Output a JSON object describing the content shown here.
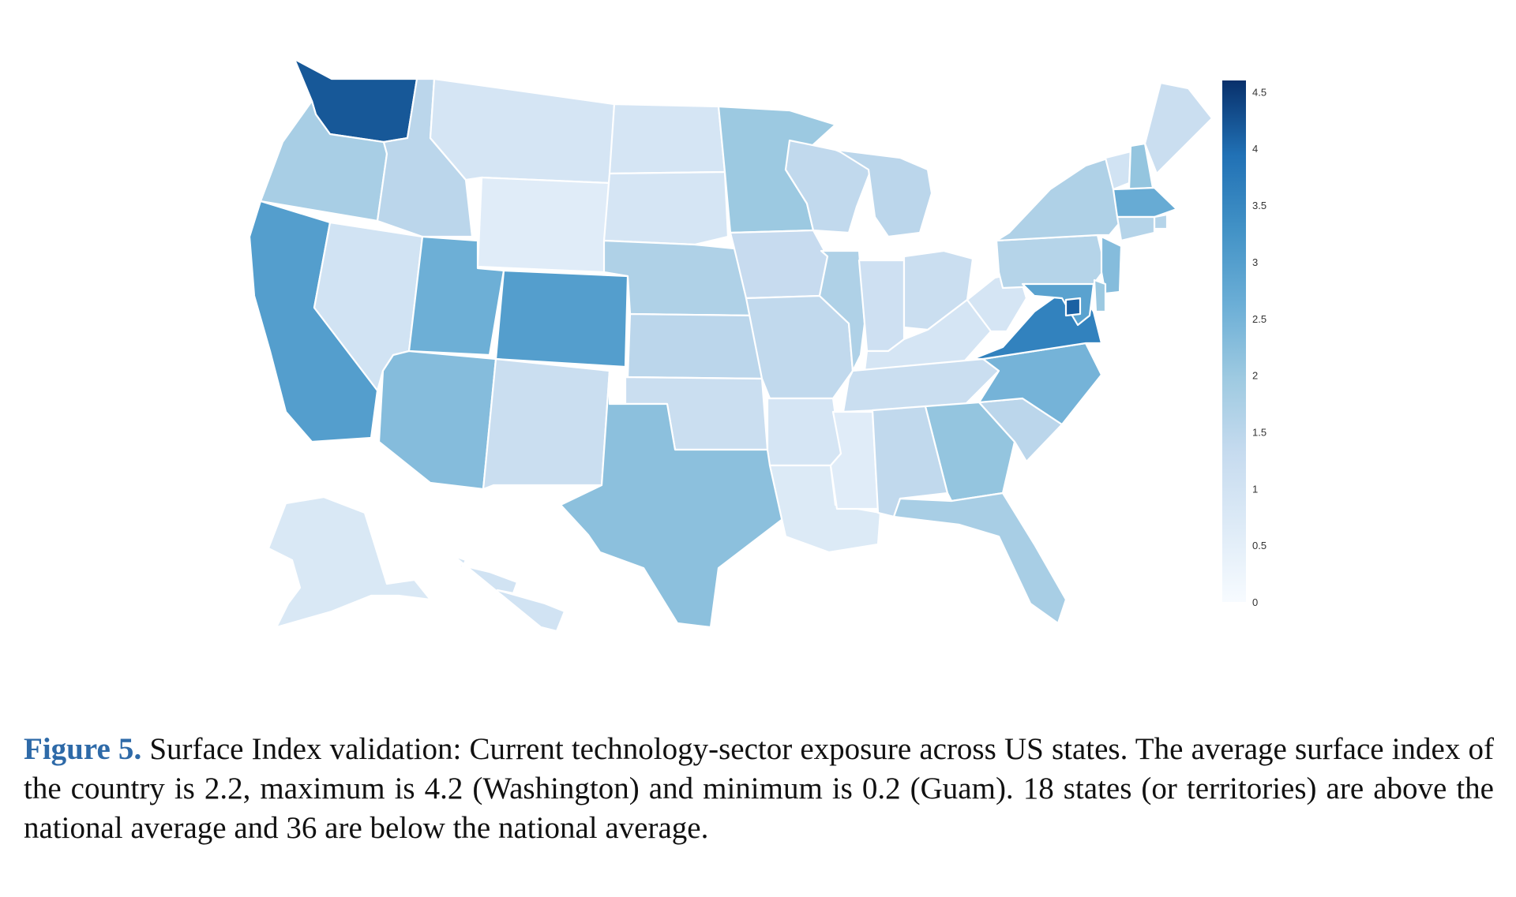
{
  "figure": {
    "label": "Figure 5",
    "label_suffix": ".",
    "caption": "Surface Index validation: Current technology-sector exposure across US states. The average surface index of the country is 2.2, maximum is 4.2 (Washington) and minimum is 0.2 (Guam). 18 states (or territories) are above the national average and 36 are below the national average."
  },
  "colorbar": {
    "min": 0,
    "max": 4.6,
    "ticks": [
      "0",
      "0.5",
      "1",
      "1.5",
      "2",
      "2.5",
      "3",
      "3.5",
      "4",
      "4.5"
    ],
    "colors": [
      "#f7fbff",
      "#deebf7",
      "#c6dbef",
      "#9ecae1",
      "#6baed6",
      "#4292c6",
      "#2171b5",
      "#08306b"
    ]
  },
  "chart_data": {
    "type": "choropleth",
    "title": "",
    "region": "United States",
    "values": {
      "WA": 4.2,
      "OR": 1.8,
      "CA": 3.0,
      "NV": 1.0,
      "ID": 1.5,
      "MT": 0.9,
      "WY": 0.6,
      "UT": 2.6,
      "AZ": 2.3,
      "CO": 3.0,
      "NM": 1.2,
      "ND": 0.9,
      "SD": 0.9,
      "NE": 1.7,
      "KS": 1.5,
      "OK": 1.2,
      "TX": 2.2,
      "MN": 2.0,
      "IA": 1.3,
      "MO": 1.4,
      "AR": 0.9,
      "LA": 0.7,
      "WI": 1.4,
      "IL": 1.7,
      "MI": 1.5,
      "IN": 1.1,
      "OH": 1.2,
      "KY": 0.9,
      "TN": 1.2,
      "MS": 0.6,
      "AL": 1.4,
      "GA": 2.1,
      "FL": 1.8,
      "SC": 1.5,
      "NC": 2.5,
      "VA": 3.6,
      "WV": 0.9,
      "PA": 1.6,
      "NY": 1.7,
      "VT": 1.0,
      "NH": 2.1,
      "ME": 1.2,
      "MA": 2.7,
      "RI": 1.6,
      "CT": 1.6,
      "NJ": 2.3,
      "DE": 2.0,
      "MD": 2.9,
      "DC": 4.1,
      "AK": 0.8,
      "HI": 1.0
    }
  }
}
